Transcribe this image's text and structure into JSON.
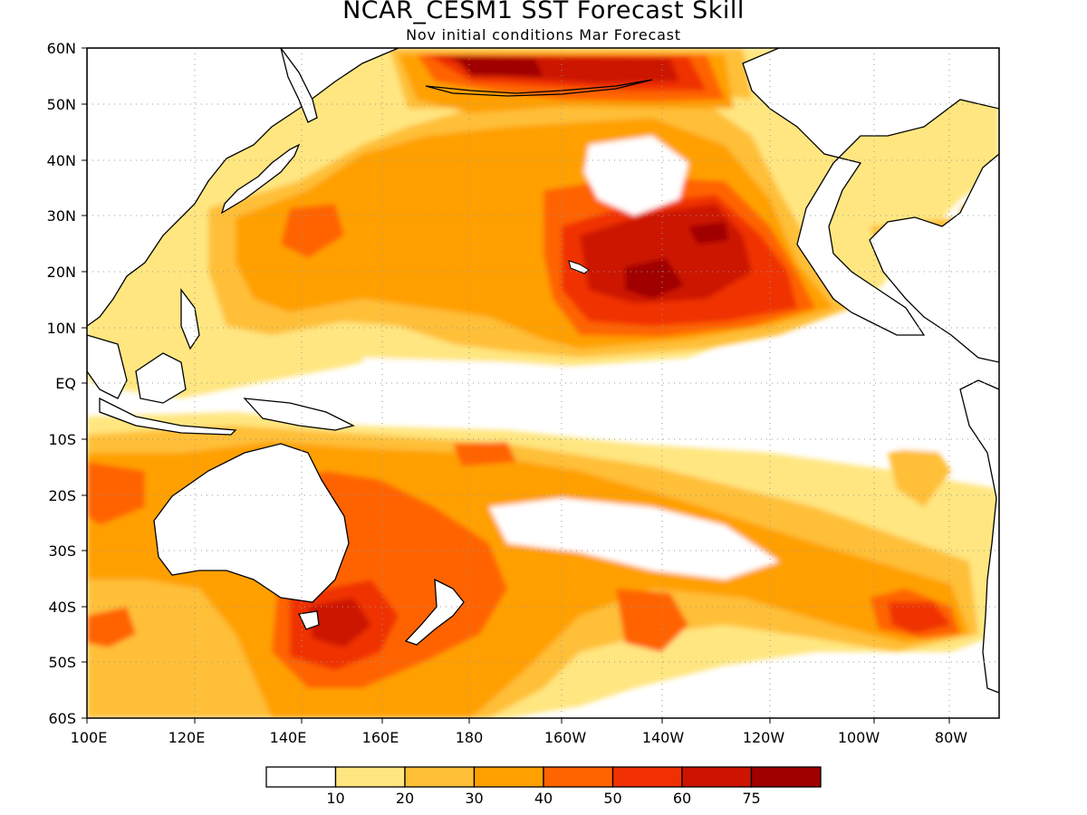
{
  "title": "NCAR_CESM1  SST Forecast Skill",
  "subtitle": "Nov initial conditions  Mar Forecast",
  "map": {
    "region": "Pacific basin",
    "lon_range": [
      "100E",
      "70W"
    ],
    "lat_range": [
      "60S",
      "60N"
    ],
    "lat_labels": [
      "60N",
      "50N",
      "40N",
      "30N",
      "20N",
      "10N",
      "EQ",
      "10S",
      "20S",
      "30S",
      "40S",
      "50S",
      "60S"
    ],
    "lon_labels": [
      "100E",
      "120E",
      "140E",
      "160E",
      "180",
      "160W",
      "140W",
      "120W",
      "100W",
      "80W"
    ],
    "grid": "dotted",
    "land_color": "#ffffff",
    "coast_color": "#000000"
  },
  "colorbar": {
    "labels": [
      "10",
      "20",
      "30",
      "40",
      "50",
      "60",
      "75"
    ],
    "colors": [
      "#ffffff",
      "#ffe680",
      "#ffbf37",
      "#ffa000",
      "#ff6400",
      "#f03000",
      "#cc1400",
      "#a00000"
    ]
  }
}
